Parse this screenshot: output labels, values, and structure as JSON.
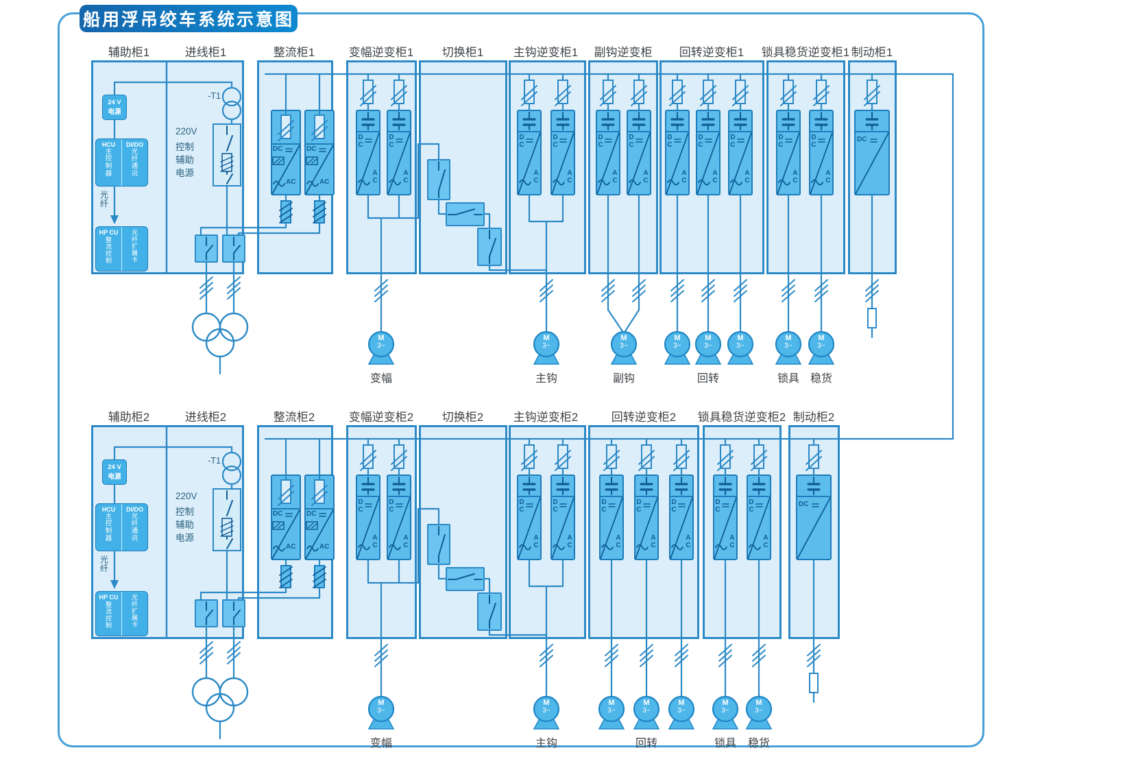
{
  "title": "船用浮吊绞车系统示意图",
  "rows": [
    {
      "cabinets": [
        "辅助柜1",
        "进线柜1",
        "整流柜1",
        "变幅逆变柜1",
        "切换柜1",
        "主钩逆变柜1",
        "副钩逆变柜",
        "回转逆变柜1",
        "锁具稳货逆变柜1",
        "制动柜1"
      ],
      "motors": [
        "变幅",
        "主钩",
        "副钩",
        "回转",
        "锁具",
        "稳货"
      ]
    },
    {
      "cabinets": [
        "辅助柜2",
        "进线柜2",
        "整流柜2",
        "变幅逆变柜2",
        "切换柜2",
        "主钩逆变柜2",
        "回转逆变柜2",
        "锁具稳货逆变柜2",
        "制动柜2"
      ],
      "motors": [
        "变幅",
        "主钩",
        "回转",
        "锁具",
        "稳货"
      ]
    }
  ],
  "aux_cabinet": {
    "psu_line1": "24 V",
    "psu_line2": "电源",
    "hcu_title": "HCU",
    "hcu_body": "主控制器",
    "dido_title": "DI/DO",
    "dido_body": "光纤通讯",
    "fiber_label": "光纤",
    "hpcu_title": "HP CU",
    "hpcu_body": "整流控制",
    "fiber_card": "光纤扩展卡"
  },
  "incoming_cabinet": {
    "transformer_tag": "-T1",
    "ctrl_power": [
      "220V",
      "控制",
      "辅助",
      "电源"
    ]
  },
  "glyphs": {
    "dc": "DC",
    "ac": "AC",
    "motor": "M",
    "motor_phase": "3~"
  },
  "colors": {
    "accent": "#0e89d0",
    "cabinet_fill": "#dceefa",
    "module_fill": "#5cbdec",
    "line": "#2b89c6",
    "label_text": "#3f4347"
  }
}
